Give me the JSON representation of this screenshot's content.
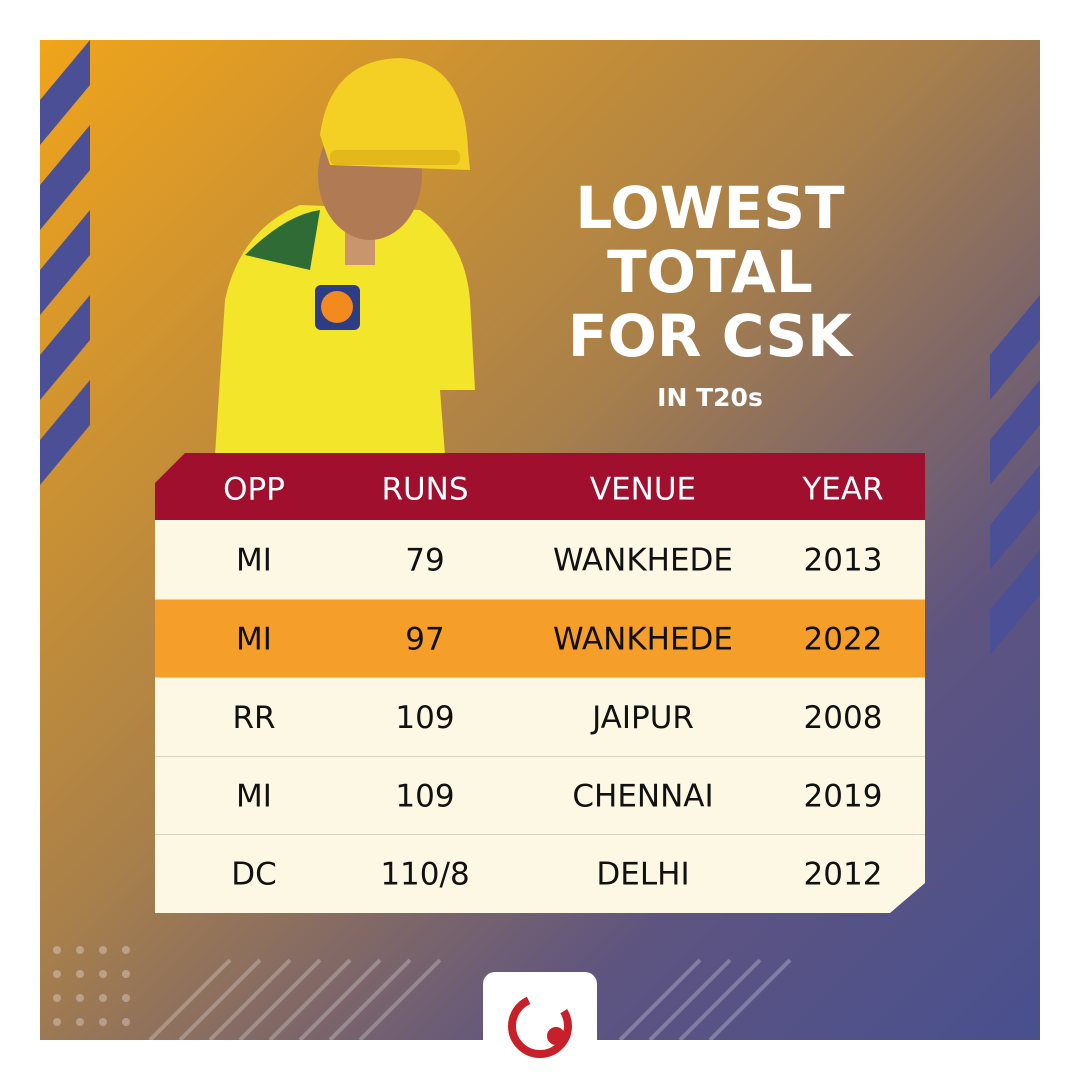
{
  "header": {
    "title_lines": [
      "LOWEST",
      "TOTAL",
      "FOR CSK"
    ],
    "subtitle": "IN T20s"
  },
  "table": {
    "columns": [
      "OPP",
      "RUNS",
      "VENUE",
      "YEAR"
    ],
    "rows": [
      [
        "MI",
        "79",
        "WANKHEDE",
        "2013"
      ],
      [
        "MI",
        "97",
        "WANKHEDE",
        "2022"
      ],
      [
        "RR",
        "109",
        "JAIPUR",
        "2008"
      ],
      [
        "MI",
        "109",
        "CHENNAI",
        "2019"
      ],
      [
        "DC",
        "110/8",
        "DELHI",
        "2012"
      ]
    ],
    "highlight_row": 1
  }
}
